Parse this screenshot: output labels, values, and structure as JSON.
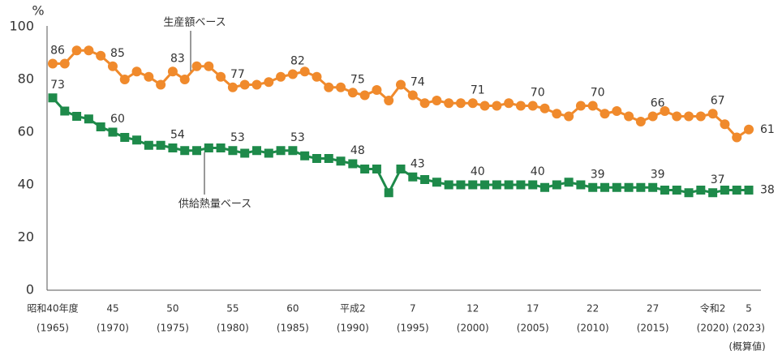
{
  "chart_data": {
    "type": "line",
    "ylabel": "%",
    "annotation": "(概算値)",
    "categories": [
      "昭和40年度",
      null,
      null,
      null,
      null,
      "45",
      null,
      null,
      null,
      null,
      "50",
      null,
      null,
      null,
      null,
      "55",
      null,
      null,
      null,
      null,
      "60",
      null,
      null,
      null,
      null,
      "平成2",
      null,
      null,
      null,
      null,
      "7",
      null,
      null,
      null,
      null,
      "12",
      null,
      null,
      null,
      null,
      "17",
      null,
      null,
      null,
      null,
      "22",
      null,
      null,
      null,
      null,
      "27",
      null,
      null,
      null,
      null,
      "令和2",
      null,
      null,
      "5"
    ],
    "category_years": [
      "(1965)",
      null,
      null,
      null,
      null,
      "(1970)",
      null,
      null,
      null,
      null,
      "(1975)",
      null,
      null,
      null,
      null,
      "(1980)",
      null,
      null,
      null,
      null,
      "(1985)",
      null,
      null,
      null,
      null,
      "(1990)",
      null,
      null,
      null,
      null,
      "(1995)",
      null,
      null,
      null,
      null,
      "(2000)",
      null,
      null,
      null,
      null,
      "(2005)",
      null,
      null,
      null,
      null,
      "(2010)",
      null,
      null,
      null,
      null,
      "(2015)",
      null,
      null,
      null,
      null,
      "(2020)",
      null,
      null,
      "(2023)"
    ],
    "series": [
      {
        "name": "生産額ベース",
        "color": "#f08a2c",
        "marker": "circle",
        "values": [
          86,
          86,
          91,
          91,
          89,
          85,
          80,
          83,
          81,
          78,
          83,
          80,
          85,
          85,
          81,
          77,
          78,
          78,
          79,
          81,
          82,
          83,
          81,
          77,
          77,
          75,
          74,
          76,
          72,
          78,
          74,
          71,
          72,
          71,
          71,
          71,
          70,
          70,
          71,
          70,
          70,
          69,
          67,
          66,
          70,
          70,
          67,
          68,
          66,
          64,
          66,
          68,
          66,
          66,
          66,
          67,
          63,
          58,
          61
        ],
        "value_labels": [
          "86",
          null,
          null,
          null,
          null,
          "85",
          null,
          null,
          null,
          null,
          "83",
          null,
          null,
          null,
          null,
          "77",
          null,
          null,
          null,
          null,
          "82",
          null,
          null,
          null,
          null,
          "75",
          null,
          null,
          null,
          null,
          "74",
          null,
          null,
          null,
          null,
          "71",
          null,
          null,
          null,
          null,
          "70",
          null,
          null,
          null,
          null,
          "70",
          null,
          null,
          null,
          null,
          "66",
          null,
          null,
          null,
          null,
          "67",
          null,
          null,
          "61"
        ]
      },
      {
        "name": "供給熱量ベース",
        "color": "#1e8a4a",
        "marker": "square",
        "values": [
          73,
          68,
          66,
          65,
          62,
          60,
          58,
          57,
          55,
          55,
          54,
          53,
          53,
          54,
          54,
          53,
          52,
          53,
          52,
          53,
          53,
          51,
          50,
          50,
          49,
          48,
          46,
          46,
          37,
          46,
          43,
          42,
          41,
          40,
          40,
          40,
          40,
          40,
          40,
          40,
          40,
          39,
          40,
          41,
          40,
          39,
          39,
          39,
          39,
          39,
          39,
          38,
          38,
          37,
          38,
          37,
          38,
          38,
          38
        ],
        "value_labels": [
          "73",
          null,
          null,
          null,
          null,
          "60",
          null,
          null,
          null,
          null,
          "54",
          null,
          null,
          null,
          null,
          "53",
          null,
          null,
          null,
          null,
          "53",
          null,
          null,
          null,
          null,
          "48",
          null,
          null,
          null,
          null,
          "43",
          null,
          null,
          null,
          null,
          "40",
          null,
          null,
          null,
          null,
          "40",
          null,
          null,
          null,
          null,
          "39",
          null,
          null,
          null,
          null,
          "39",
          null,
          null,
          null,
          null,
          "37",
          null,
          null,
          "38"
        ]
      }
    ],
    "ylim": [
      0,
      100
    ],
    "yticks": [
      0,
      20,
      40,
      60,
      80,
      100
    ],
    "grid": false
  }
}
